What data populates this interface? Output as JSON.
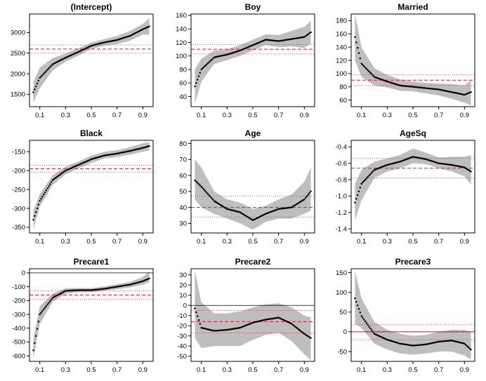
{
  "chart_data": [
    {
      "type": "line",
      "title": "(Intercept)",
      "x": [
        0.05,
        0.1,
        0.2,
        0.3,
        0.4,
        0.5,
        0.6,
        0.7,
        0.8,
        0.9,
        0.95
      ],
      "y": [
        1550,
        1900,
        2230,
        2390,
        2530,
        2680,
        2760,
        2820,
        2920,
        3080,
        3150
      ],
      "lower": [
        1300,
        1650,
        2080,
        2290,
        2440,
        2600,
        2680,
        2720,
        2800,
        2950,
        2950
      ],
      "upper": [
        1800,
        2150,
        2380,
        2490,
        2620,
        2760,
        2840,
        2920,
        3040,
        3210,
        3350
      ],
      "ols": 2600,
      "ols_ci": [
        2500,
        2700
      ],
      "xlim": [
        0.02,
        0.98
      ],
      "ylim": [
        1200,
        3450
      ],
      "xticks": [
        "0.1",
        "0.3",
        "0.5",
        "0.7",
        "0.9"
      ],
      "yticks": [
        1500,
        2000,
        2500,
        3000
      ],
      "ytick_labels": [
        "1500",
        "2000",
        "2500",
        "3000"
      ]
    },
    {
      "type": "line",
      "title": "Boy",
      "x": [
        0.05,
        0.1,
        0.2,
        0.3,
        0.4,
        0.5,
        0.6,
        0.7,
        0.8,
        0.9,
        0.95
      ],
      "y": [
        55,
        80,
        98,
        102,
        108,
        116,
        124,
        122,
        125,
        128,
        135
      ],
      "lower": [
        30,
        62,
        88,
        94,
        100,
        108,
        116,
        113,
        114,
        112,
        118
      ],
      "upper": [
        80,
        96,
        108,
        110,
        116,
        124,
        132,
        131,
        137,
        143,
        152
      ],
      "ols": 110,
      "ols_ci": [
        103,
        117
      ],
      "xlim": [
        0.02,
        0.98
      ],
      "ylim": [
        25,
        162
      ],
      "xticks": [
        "0.1",
        "0.3",
        "0.5",
        "0.7",
        "0.9"
      ],
      "yticks": [
        40,
        60,
        80,
        100,
        120,
        140,
        160
      ],
      "ytick_labels": [
        "40",
        "60",
        "80",
        "100",
        "120",
        "140",
        "160"
      ]
    },
    {
      "type": "line",
      "title": "Married",
      "x": [
        0.05,
        0.1,
        0.2,
        0.3,
        0.4,
        0.5,
        0.6,
        0.7,
        0.8,
        0.9,
        0.95
      ],
      "y": [
        155,
        115,
        95,
        88,
        82,
        80,
        78,
        76,
        72,
        68,
        72
      ],
      "lower": [
        120,
        95,
        82,
        79,
        74,
        73,
        70,
        67,
        62,
        56,
        52
      ],
      "upper": [
        190,
        140,
        108,
        98,
        91,
        88,
        86,
        85,
        84,
        82,
        90
      ],
      "ols": 90,
      "ols_ci": [
        82,
        98
      ],
      "xlim": [
        0.02,
        0.98
      ],
      "ylim": [
        50,
        190
      ],
      "xticks": [
        "0.1",
        "0.3",
        "0.5",
        "0.7",
        "0.9"
      ],
      "yticks": [
        60,
        80,
        100,
        120,
        140,
        160,
        180
      ],
      "ytick_labels": [
        "60",
        "80",
        "100",
        "120",
        "140",
        "160",
        "180"
      ]
    },
    {
      "type": "line",
      "title": "Black",
      "x": [
        0.05,
        0.1,
        0.2,
        0.3,
        0.4,
        0.5,
        0.6,
        0.7,
        0.8,
        0.9,
        0.95
      ],
      "y": [
        -330,
        -280,
        -225,
        -200,
        -185,
        -170,
        -160,
        -155,
        -148,
        -140,
        -135
      ],
      "lower": [
        -355,
        -295,
        -238,
        -210,
        -194,
        -180,
        -168,
        -164,
        -158,
        -150,
        -147
      ],
      "upper": [
        -305,
        -262,
        -212,
        -190,
        -176,
        -160,
        -150,
        -146,
        -138,
        -128,
        -125
      ],
      "ols": -195,
      "ols_ci": [
        -204,
        -186
      ],
      "xlim": [
        0.02,
        0.98
      ],
      "ylim": [
        -365,
        -120
      ],
      "xticks": [
        "0.1",
        "0.3",
        "0.5",
        "0.7",
        "0.9"
      ],
      "yticks": [
        -350,
        -300,
        -250,
        -200,
        -150
      ],
      "ytick_labels": [
        "-350",
        "-300",
        "-250",
        "-200",
        "-150"
      ]
    },
    {
      "type": "line",
      "title": "Age",
      "x": [
        0.05,
        0.1,
        0.2,
        0.3,
        0.4,
        0.5,
        0.6,
        0.7,
        0.8,
        0.9,
        0.95
      ],
      "y": [
        57,
        53,
        44,
        39,
        37,
        32,
        36,
        39,
        40,
        45,
        50
      ],
      "lower": [
        45,
        40,
        36,
        33,
        30,
        26,
        31,
        33,
        33,
        36,
        38
      ],
      "upper": [
        70,
        65,
        50,
        45,
        43,
        39,
        41,
        45,
        48,
        56,
        65
      ],
      "ols": 40,
      "ols_ci": [
        34,
        47
      ],
      "xlim": [
        0.02,
        0.98
      ],
      "ylim": [
        24,
        82
      ],
      "xticks": [
        "0.1",
        "0.3",
        "0.5",
        "0.7",
        "0.9"
      ],
      "yticks": [
        30,
        40,
        50,
        60,
        70,
        80
      ],
      "ytick_labels": [
        "30",
        "40",
        "50",
        "60",
        "70",
        "80"
      ]
    },
    {
      "type": "line",
      "title": "AgeSq",
      "x": [
        0.05,
        0.1,
        0.2,
        0.3,
        0.4,
        0.5,
        0.6,
        0.7,
        0.8,
        0.9,
        0.95
      ],
      "y": [
        -1.08,
        -0.85,
        -0.68,
        -0.62,
        -0.58,
        -0.52,
        -0.55,
        -0.6,
        -0.62,
        -0.65,
        -0.7
      ],
      "lower": [
        -1.3,
        -1.05,
        -0.78,
        -0.7,
        -0.66,
        -0.6,
        -0.61,
        -0.66,
        -0.7,
        -0.76,
        -0.86
      ],
      "upper": [
        -0.85,
        -0.68,
        -0.58,
        -0.54,
        -0.5,
        -0.42,
        -0.47,
        -0.53,
        -0.52,
        -0.52,
        -0.5
      ],
      "ols": -0.66,
      "ols_ci": [
        -0.78,
        -0.54
      ],
      "xlim": [
        0.02,
        0.98
      ],
      "ylim": [
        -1.45,
        -0.32
      ],
      "xticks": [
        "0.1",
        "0.3",
        "0.5",
        "0.7",
        "0.9"
      ],
      "yticks": [
        -1.4,
        -1.2,
        -1.0,
        -0.8,
        -0.6,
        -0.4
      ],
      "ytick_labels": [
        "-1.4",
        "-1.2",
        "-1.0",
        "-0.8",
        "-0.6",
        "-0.4"
      ]
    },
    {
      "type": "line",
      "title": "Precare1",
      "x": [
        0.05,
        0.1,
        0.2,
        0.3,
        0.4,
        0.5,
        0.6,
        0.7,
        0.8,
        0.9,
        0.95
      ],
      "y": [
        -560,
        -300,
        -180,
        -130,
        -125,
        -125,
        -115,
        -100,
        -85,
        -60,
        -40
      ],
      "lower": [
        -620,
        -370,
        -210,
        -150,
        -140,
        -140,
        -130,
        -118,
        -105,
        -85,
        -70
      ],
      "upper": [
        -480,
        -240,
        -150,
        -110,
        -110,
        -110,
        -98,
        -82,
        -65,
        -30,
        10
      ],
      "ols": -160,
      "ols_ci": [
        -190,
        -130
      ],
      "xlim": [
        0.02,
        0.98
      ],
      "ylim": [
        -640,
        30
      ],
      "xticks": [
        "0.1",
        "0.3",
        "0.5",
        "0.7",
        "0.9"
      ],
      "yticks": [
        -600,
        -500,
        -400,
        -300,
        -200,
        -100,
        0
      ],
      "ytick_labels": [
        "-600",
        "-500",
        "-400",
        "-300",
        "-200",
        "-100",
        "0"
      ]
    },
    {
      "type": "line",
      "title": "Precare2",
      "x": [
        0.05,
        0.1,
        0.2,
        0.3,
        0.4,
        0.5,
        0.6,
        0.7,
        0.8,
        0.9,
        0.95
      ],
      "y": [
        -3,
        -22,
        -25,
        -24,
        -22,
        -17,
        -14,
        -12,
        -18,
        -28,
        -32
      ],
      "lower": [
        -32,
        -42,
        -40,
        -40,
        -40,
        -34,
        -29,
        -27,
        -35,
        -48,
        -54
      ],
      "upper": [
        34,
        3,
        -8,
        -8,
        -6,
        -2,
        1,
        2,
        -2,
        -10,
        -12
      ],
      "ols": -16,
      "ols_ci": [
        -27,
        -5
      ],
      "xlim": [
        0.02,
        0.98
      ],
      "ylim": [
        -55,
        36
      ],
      "xticks": [
        "0.1",
        "0.3",
        "0.5",
        "0.7",
        "0.9"
      ],
      "yticks": [
        -50,
        -40,
        -30,
        -20,
        -10,
        0,
        10,
        20,
        30
      ],
      "ytick_labels": [
        "-50",
        "-40",
        "-30",
        "-20",
        "-10",
        "0",
        "10",
        "20",
        "30"
      ]
    },
    {
      "type": "line",
      "title": "Precare3",
      "x": [
        0.05,
        0.1,
        0.2,
        0.3,
        0.4,
        0.5,
        0.6,
        0.7,
        0.8,
        0.9,
        0.95
      ],
      "y": [
        85,
        40,
        -5,
        -20,
        -30,
        -35,
        -32,
        -25,
        -22,
        -30,
        -45
      ],
      "lower": [
        20,
        10,
        -30,
        -45,
        -55,
        -58,
        -55,
        -50,
        -50,
        -60,
        -70
      ],
      "upper": [
        155,
        85,
        25,
        5,
        -5,
        -10,
        -8,
        0,
        5,
        5,
        0
      ],
      "ols": 0,
      "ols_ci": [
        -20,
        18
      ],
      "xlim": [
        0.02,
        0.98
      ],
      "ylim": [
        -75,
        160
      ],
      "xticks": [
        "0.1",
        "0.3",
        "0.5",
        "0.7",
        "0.9"
      ],
      "yticks": [
        -50,
        0,
        50,
        100,
        150
      ],
      "ytick_labels": [
        "-50",
        "0",
        "50",
        "100",
        "150"
      ]
    }
  ]
}
